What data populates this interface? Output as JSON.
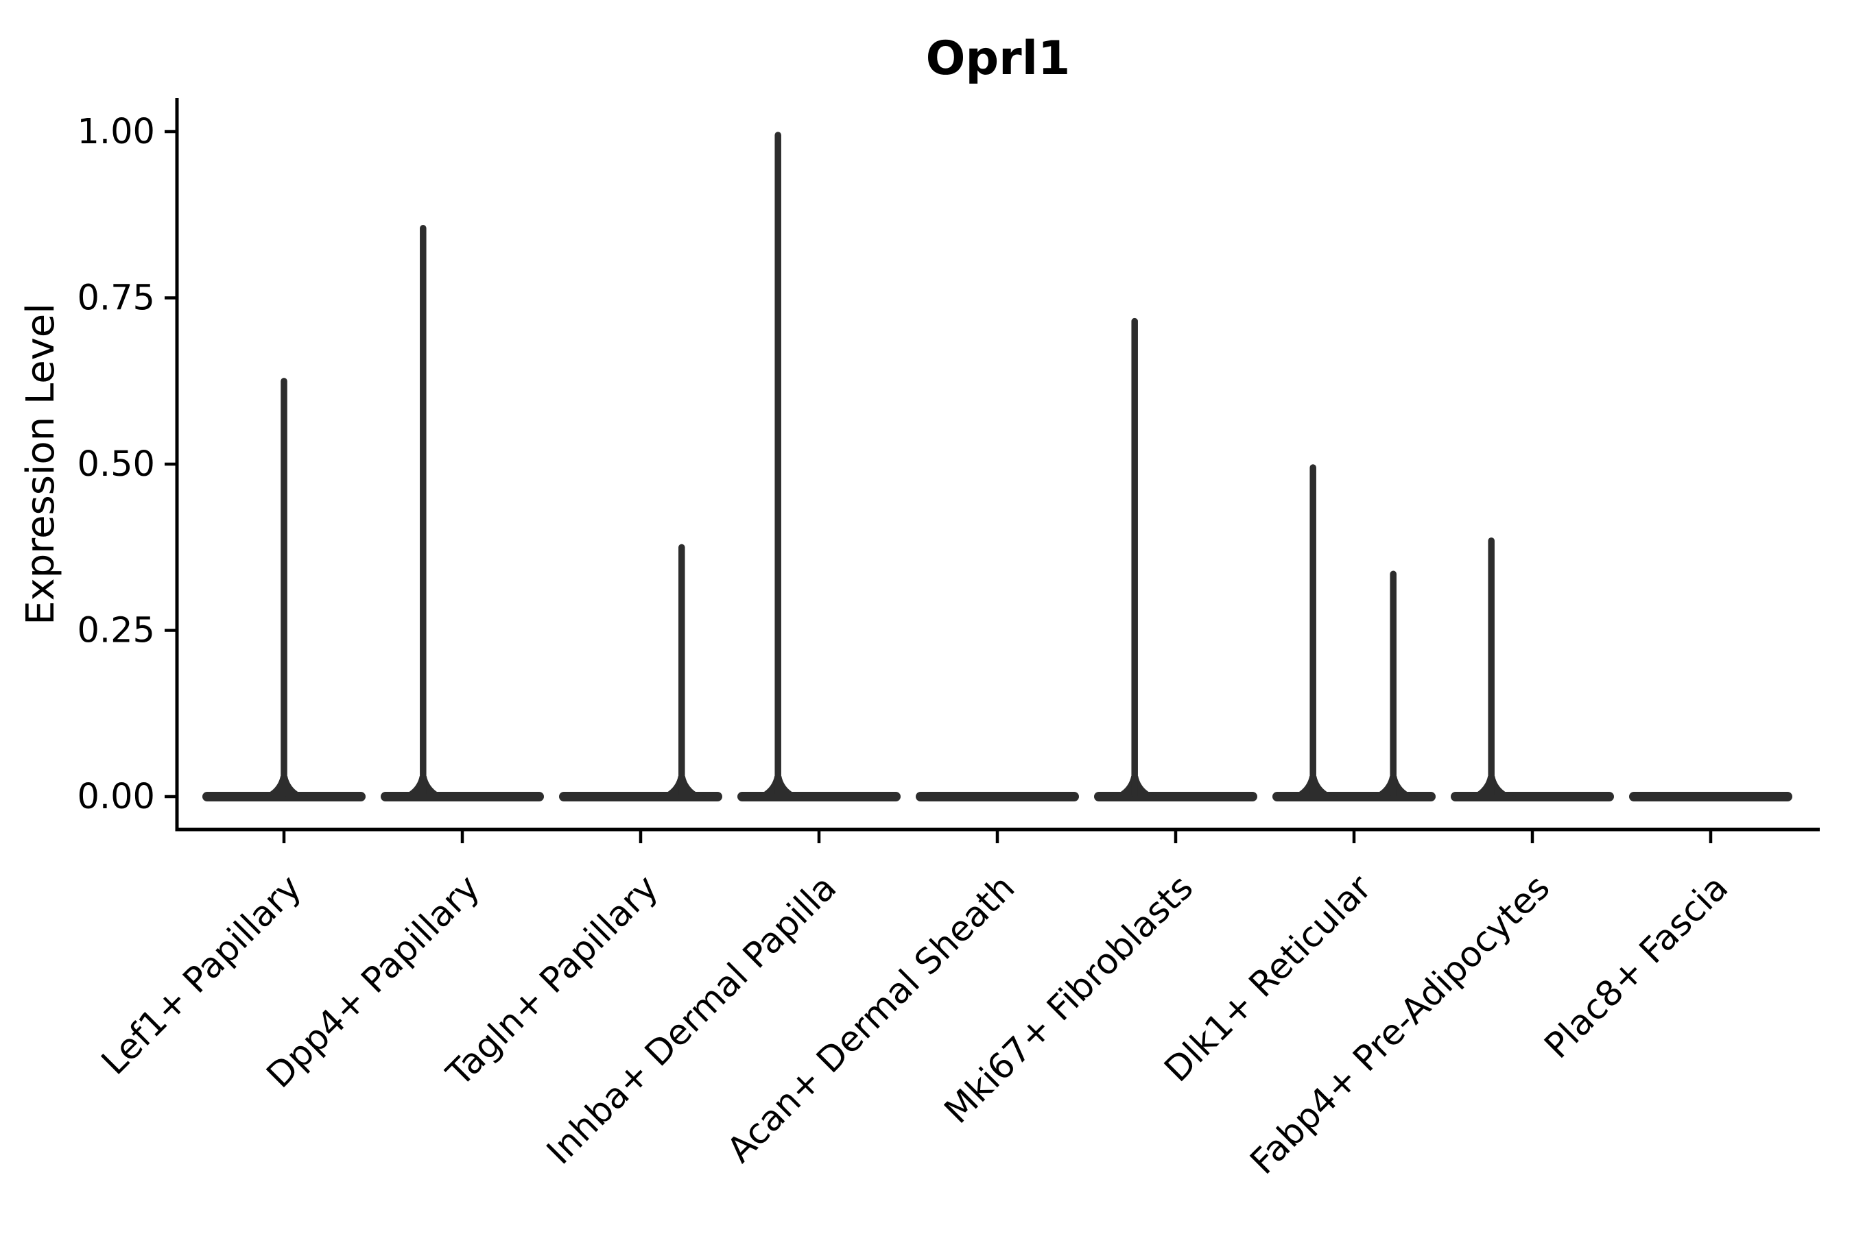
{
  "figure": {
    "background": "#ffffff"
  },
  "chart_data": {
    "type": "violin",
    "title": "Oprl1",
    "xlabel": "",
    "ylabel": "Expression Level",
    "ylim": [
      0,
      1.05
    ],
    "yticks": [
      0.0,
      0.25,
      0.5,
      0.75,
      1.0
    ],
    "ytick_labels": [
      "0.00",
      "0.25",
      "0.50",
      "0.75",
      "1.00"
    ],
    "grid": false,
    "legend_position": "none",
    "description": "Seurat-style violin plot of Oprl1 expression; each violin collapses to a flat base at 0 with thin spikes up to the maximum expression of rare expressing cells.",
    "categories": [
      "Lef1+ Papillary",
      "Dpp4+ Papillary",
      "Tagln+ Papillary",
      "Inhba+ Dermal Papilla",
      "Acan+ Dermal Sheath",
      "Mki67+ Fibroblasts",
      "Dlk1+ Reticular",
      "Fabp4+ Pre-Adipocytes",
      "Plac8+ Fascia"
    ],
    "series": [
      {
        "category": "Lef1+ Papillary",
        "base_width": 0.9,
        "spikes": [
          {
            "x_offset": 0.0,
            "expression_max": 0.63
          }
        ]
      },
      {
        "category": "Dpp4+ Papillary",
        "base_width": 0.9,
        "spikes": [
          {
            "x_offset": -0.22,
            "expression_max": 0.86
          }
        ]
      },
      {
        "category": "Tagln+ Papillary",
        "base_width": 0.9,
        "spikes": [
          {
            "x_offset": 0.23,
            "expression_max": 0.38
          }
        ]
      },
      {
        "category": "Inhba+ Dermal Papilla",
        "base_width": 0.9,
        "spikes": [
          {
            "x_offset": -0.23,
            "expression_max": 1.0
          }
        ]
      },
      {
        "category": "Acan+ Dermal Sheath",
        "base_width": 0.9,
        "spikes": []
      },
      {
        "category": "Mki67+ Fibroblasts",
        "base_width": 0.9,
        "spikes": [
          {
            "x_offset": -0.23,
            "expression_max": 0.72
          }
        ]
      },
      {
        "category": "Dlk1+ Reticular",
        "base_width": 0.9,
        "spikes": [
          {
            "x_offset": -0.23,
            "expression_max": 0.5
          },
          {
            "x_offset": 0.22,
            "expression_max": 0.34
          }
        ]
      },
      {
        "category": "Fabp4+ Pre-Adipocytes",
        "base_width": 0.9,
        "spikes": [
          {
            "x_offset": -0.23,
            "expression_max": 0.39
          }
        ]
      },
      {
        "category": "Plac8+ Fascia",
        "base_width": 0.9,
        "spikes": []
      }
    ],
    "colors": {
      "violin": "#2d2d2d",
      "axis": "#000000",
      "text": "#000000",
      "background": "#ffffff"
    }
  }
}
